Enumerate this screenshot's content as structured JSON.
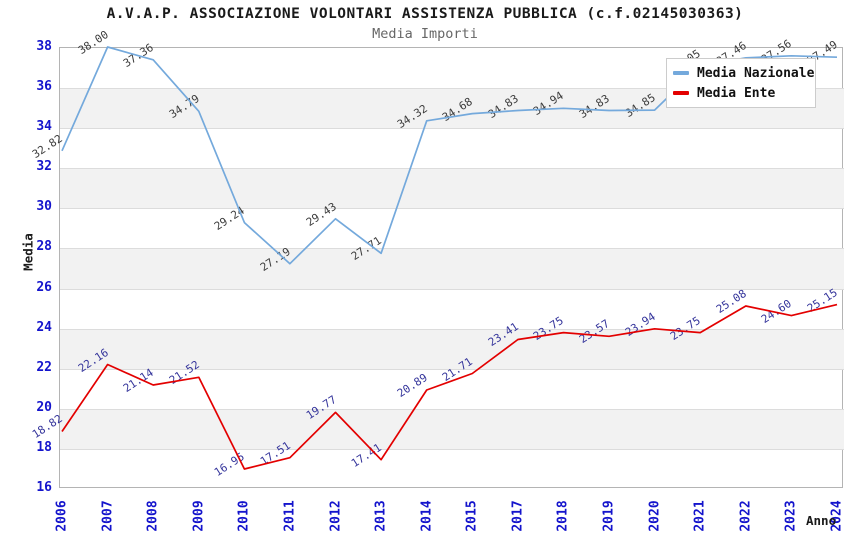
{
  "title": "A.V.A.P. ASSOCIAZIONE VOLONTARI ASSISTENZA PUBBLICA (c.f.02145030363)",
  "subtitle": "Media Importi",
  "axes": {
    "y_label": "Media",
    "x_label": "Anno",
    "y_ticks": [
      38,
      36,
      34,
      32,
      30,
      28,
      26,
      24,
      22,
      20,
      18,
      16
    ],
    "tick_color": "#1414cc"
  },
  "legend": {
    "items": [
      {
        "label": "Media Nazionale",
        "color": "#74a9dc"
      },
      {
        "label": "Media Ente",
        "color": "#e30000"
      }
    ]
  },
  "chart_data": {
    "type": "line",
    "title": "Media Importi",
    "xlabel": "Anno",
    "ylabel": "Media",
    "ylim": [
      16,
      38
    ],
    "grid": true,
    "band_color": "#f2f2f2",
    "legend_position": "top-right",
    "categories": [
      "2006",
      "2007",
      "2008",
      "2009",
      "2010",
      "2011",
      "2012",
      "2013",
      "2014",
      "2015",
      "2017",
      "2018",
      "2019",
      "2020",
      "2021",
      "2022",
      "2023",
      "2024"
    ],
    "series": [
      {
        "name": "Media Nazionale",
        "color": "#74a9dc",
        "label_color": "#3c3c3c",
        "values": [
          32.82,
          38.0,
          37.36,
          34.79,
          29.24,
          27.19,
          29.43,
          27.71,
          34.32,
          34.68,
          34.83,
          34.94,
          34.83,
          34.85,
          37.05,
          37.46,
          37.56,
          37.49
        ]
      },
      {
        "name": "Media Ente",
        "color": "#e30000",
        "label_color": "#34349b",
        "values": [
          18.82,
          22.16,
          21.14,
          21.52,
          16.95,
          17.51,
          19.77,
          17.41,
          20.89,
          21.71,
          23.41,
          23.75,
          23.57,
          23.94,
          23.75,
          25.08,
          24.6,
          25.15
        ]
      }
    ]
  }
}
